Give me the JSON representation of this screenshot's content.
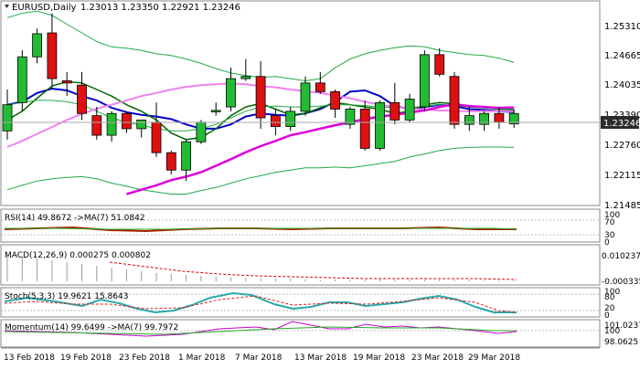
{
  "title": {
    "symbol_text": "EURUSD,Daily",
    "ohlc_text": "1.23013 1.23350 1.22921 1.23246"
  },
  "price_axis": {
    "ticks": [
      "1.25310",
      "1.24665",
      "1.24035",
      "1.23390",
      "1.22760",
      "1.22115",
      "1.21485"
    ],
    "current_price": "1.23246"
  },
  "time_axis": {
    "labels": [
      "13 Feb 2018",
      "19 Feb 2018",
      "23 Feb 2018",
      "1 Mar 2018",
      "7 Mar 2018",
      "13 Mar 2018",
      "19 Mar 2018",
      "23 Mar 2018",
      "29 Mar 2018"
    ]
  },
  "indicators": {
    "rsi": {
      "label": "RSI(14) 49.8672 ->MA(7) 51.0842",
      "ticks": [
        "100",
        "70",
        "30",
        "0"
      ]
    },
    "macd": {
      "label": "MACD(12,26,9) 0.000275 0.000802",
      "ticks": [
        "0.010237",
        "-0.000335"
      ]
    },
    "stoch": {
      "label": "Stoch(5,3,3) 19.9621 15.8643",
      "ticks": [
        "100",
        "80",
        "20",
        "0"
      ]
    },
    "momentum": {
      "label": "Momentum(14) 99.6499 ->MA(7) 99.7972",
      "ticks": [
        "101.0237",
        "100",
        "98.0625"
      ]
    }
  },
  "colors": {
    "bull": "#22bb33",
    "bear": "#dd1111",
    "ma_fast": "#0000cc",
    "ma_mid": "#006600",
    "ma_slow_light": "#f080f0",
    "ma_slow": "#dd00dd",
    "bollinger": "#22aa44",
    "rsi_line": "#aa2200",
    "rsi_ma": "#22aa22",
    "macd_hist": "#999999",
    "macd_signal": "#dd0000",
    "stoch_main": "#2aa8a8",
    "stoch_signal": "#dd2222",
    "momentum_line": "#cc00cc",
    "momentum_ma": "#22aa22",
    "price_label_bg": "#2b2b2b"
  },
  "chart_data": {
    "type": "candlestick",
    "symbol": "EURUSD",
    "timeframe": "Daily",
    "ylim": [
      1.212,
      1.2575
    ],
    "candles": [
      {
        "o": 1.2285,
        "h": 1.238,
        "l": 1.2265,
        "c": 1.2345
      },
      {
        "o": 1.235,
        "h": 1.247,
        "l": 1.233,
        "c": 1.2455
      },
      {
        "o": 1.2455,
        "h": 1.252,
        "l": 1.244,
        "c": 1.2508
      },
      {
        "o": 1.251,
        "h": 1.2555,
        "l": 1.2385,
        "c": 1.2405
      },
      {
        "o": 1.24,
        "h": 1.242,
        "l": 1.2365,
        "c": 1.2395
      },
      {
        "o": 1.239,
        "h": 1.242,
        "l": 1.231,
        "c": 1.2325
      },
      {
        "o": 1.232,
        "h": 1.234,
        "l": 1.2265,
        "c": 1.2275
      },
      {
        "o": 1.2275,
        "h": 1.233,
        "l": 1.226,
        "c": 1.2325
      },
      {
        "o": 1.2325,
        "h": 1.233,
        "l": 1.228,
        "c": 1.229
      },
      {
        "o": 1.229,
        "h": 1.231,
        "l": 1.227,
        "c": 1.231
      },
      {
        "o": 1.2305,
        "h": 1.235,
        "l": 1.2225,
        "c": 1.2235
      },
      {
        "o": 1.2235,
        "h": 1.224,
        "l": 1.2185,
        "c": 1.2195
      },
      {
        "o": 1.2195,
        "h": 1.2265,
        "l": 1.217,
        "c": 1.226
      },
      {
        "o": 1.226,
        "h": 1.231,
        "l": 1.2255,
        "c": 1.2305
      },
      {
        "o": 1.233,
        "h": 1.235,
        "l": 1.232,
        "c": 1.2332
      },
      {
        "o": 1.234,
        "h": 1.243,
        "l": 1.233,
        "c": 1.2405
      },
      {
        "o": 1.2405,
        "h": 1.245,
        "l": 1.24,
        "c": 1.241
      },
      {
        "o": 1.241,
        "h": 1.2445,
        "l": 1.229,
        "c": 1.2315
      },
      {
        "o": 1.232,
        "h": 1.2335,
        "l": 1.2275,
        "c": 1.2295
      },
      {
        "o": 1.2295,
        "h": 1.234,
        "l": 1.2285,
        "c": 1.233
      },
      {
        "o": 1.233,
        "h": 1.241,
        "l": 1.232,
        "c": 1.2395
      },
      {
        "o": 1.2395,
        "h": 1.242,
        "l": 1.237,
        "c": 1.2375
      },
      {
        "o": 1.2375,
        "h": 1.238,
        "l": 1.2315,
        "c": 1.2335
      },
      {
        "o": 1.23,
        "h": 1.234,
        "l": 1.229,
        "c": 1.2335
      },
      {
        "o": 1.2335,
        "h": 1.2355,
        "l": 1.224,
        "c": 1.2245
      },
      {
        "o": 1.2245,
        "h": 1.2355,
        "l": 1.224,
        "c": 1.235
      },
      {
        "o": 1.235,
        "h": 1.2395,
        "l": 1.23,
        "c": 1.231
      },
      {
        "o": 1.231,
        "h": 1.237,
        "l": 1.2305,
        "c": 1.2358
      },
      {
        "o": 1.234,
        "h": 1.247,
        "l": 1.233,
        "c": 1.246
      },
      {
        "o": 1.246,
        "h": 1.2475,
        "l": 1.241,
        "c": 1.2415
      },
      {
        "o": 1.241,
        "h": 1.242,
        "l": 1.229,
        "c": 1.23
      },
      {
        "o": 1.23,
        "h": 1.234,
        "l": 1.2285,
        "c": 1.232
      },
      {
        "o": 1.23,
        "h": 1.233,
        "l": 1.2285,
        "c": 1.2325
      },
      {
        "o": 1.2325,
        "h": 1.234,
        "l": 1.229,
        "c": 1.2305
      },
      {
        "o": 1.2301,
        "h": 1.2335,
        "l": 1.2292,
        "c": 1.2325
      }
    ],
    "series": [
      {
        "values": [
          1.2345,
          1.2352,
          1.2372,
          1.2382,
          1.2378,
          1.2365,
          1.2355,
          1.2338,
          1.2328,
          1.2322,
          1.2318,
          1.2312,
          1.23,
          1.229,
          1.229,
          1.23,
          1.2318,
          1.2325,
          1.2322,
          1.232,
          1.2325,
          1.2335,
          1.2352,
          1.2375,
          1.2378,
          1.2365,
          1.2342,
          1.2335,
          1.234,
          1.2345,
          1.2342,
          1.2335,
          1.2333,
          1.233,
          1.2328
        ]
      },
      {
        "values": [
          1.231,
          1.233,
          1.236,
          1.2388,
          1.2398,
          1.2395,
          1.238,
          1.2365,
          1.2345,
          1.233,
          1.231,
          1.228,
          1.2265,
          1.227,
          1.229,
          1.232,
          1.234,
          1.2348,
          1.2335,
          1.2322,
          1.2325,
          1.2338,
          1.235,
          1.2345,
          1.234,
          1.2335,
          1.2325,
          1.233,
          1.2345,
          1.235,
          1.2347,
          1.234,
          1.2338,
          1.2335,
          1.2333
        ]
      },
      {
        "values": [
          1.2345,
          1.235,
          1.2355,
          1.2355,
          1.2352,
          1.2345,
          1.233,
          1.2315,
          1.2305,
          1.2298,
          1.229,
          1.2285,
          1.2285,
          1.229,
          1.23,
          1.2315,
          1.233,
          1.234,
          1.2342,
          1.234,
          1.234,
          1.2342,
          1.2345,
          1.2345,
          1.2343,
          1.234,
          1.2338,
          1.2338,
          1.2342,
          1.2345,
          1.2343,
          1.234,
          1.2338,
          1.2336,
          1.2335
        ]
      },
      {
        "values": [
          1.2248,
          1.2262,
          1.2278,
          1.2294,
          1.231,
          1.2324,
          1.2336,
          1.2345,
          1.2355,
          1.2365,
          1.2372,
          1.238,
          1.2386,
          1.239,
          1.2392,
          1.2394,
          1.2392,
          1.2388,
          1.2385,
          1.238,
          1.2376,
          1.2372,
          1.2366,
          1.236,
          1.2352,
          1.2345,
          1.234,
          1.2336,
          1.2334,
          1.2332,
          1.2331,
          1.233,
          1.233,
          1.233,
          1.233
        ]
      },
      {
        "values": [
          null,
          null,
          null,
          null,
          null,
          null,
          null,
          null,
          1.214,
          1.215,
          1.216,
          1.2172,
          1.218,
          1.219,
          1.2205,
          1.222,
          1.2236,
          1.225,
          1.2262,
          1.2275,
          1.2282,
          1.229,
          1.2298,
          1.2305,
          1.2312,
          1.2318,
          1.2322,
          1.2327,
          1.2332,
          1.234,
          1.2346,
          1.2342,
          1.234,
          1.2338,
          1.2339
        ]
      },
      {
        "values": [
          1.2545,
          1.2555,
          1.256,
          1.255,
          1.253,
          1.251,
          1.249,
          1.2478,
          1.2475,
          1.247,
          1.2462,
          1.2458,
          1.245,
          1.244,
          1.2428,
          1.2418,
          1.2412,
          1.2408,
          1.241,
          1.2405,
          1.24,
          1.2405,
          1.243,
          1.245,
          1.2462,
          1.247,
          1.2476,
          1.248,
          1.2478,
          1.247,
          1.2465,
          1.246,
          1.2458,
          1.2452,
          1.2442
        ]
      },
      {
        "values": [
          1.215,
          1.216,
          1.217,
          1.2175,
          1.2178,
          1.218,
          1.2175,
          1.2165,
          1.2158,
          1.215,
          1.2145,
          1.214,
          1.214,
          1.2148,
          1.2155,
          1.2165,
          1.2175,
          1.2182,
          1.219,
          1.2195,
          1.22,
          1.22,
          1.2202,
          1.22,
          1.2205,
          1.221,
          1.2215,
          1.2225,
          1.2232,
          1.224,
          1.2245,
          1.2247,
          1.2248,
          1.2248,
          1.2247
        ]
      }
    ]
  }
}
